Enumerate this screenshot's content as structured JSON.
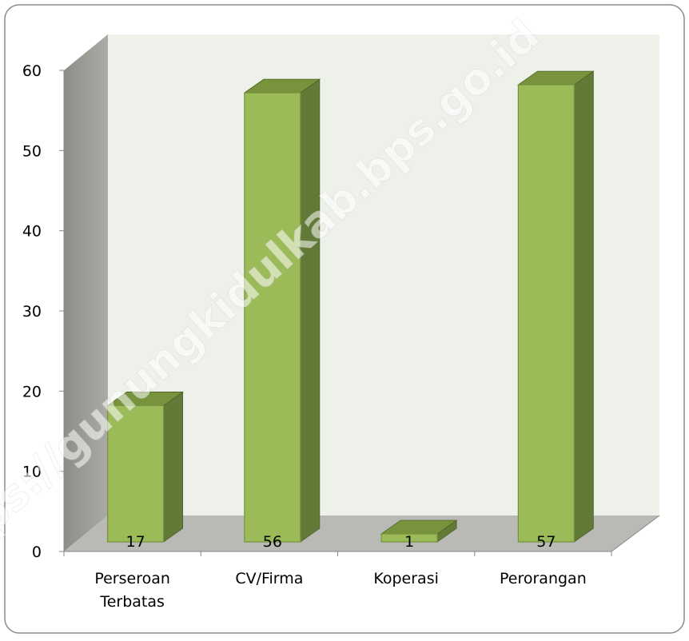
{
  "chart_data": {
    "type": "bar3d",
    "categories": [
      "Perseroan Terbatas",
      "CV/Firma",
      "Koperasi",
      "Perorangan"
    ],
    "values": [
      17,
      56,
      1,
      57
    ],
    "ylim": [
      0,
      60
    ],
    "yticks": [
      0,
      10,
      20,
      30,
      40,
      50,
      60
    ],
    "colors": {
      "front": "#9bbb59",
      "side": "#627a37",
      "top": "#77933c"
    },
    "watermark": "https://gunungkidulkab.bps.go.id"
  }
}
